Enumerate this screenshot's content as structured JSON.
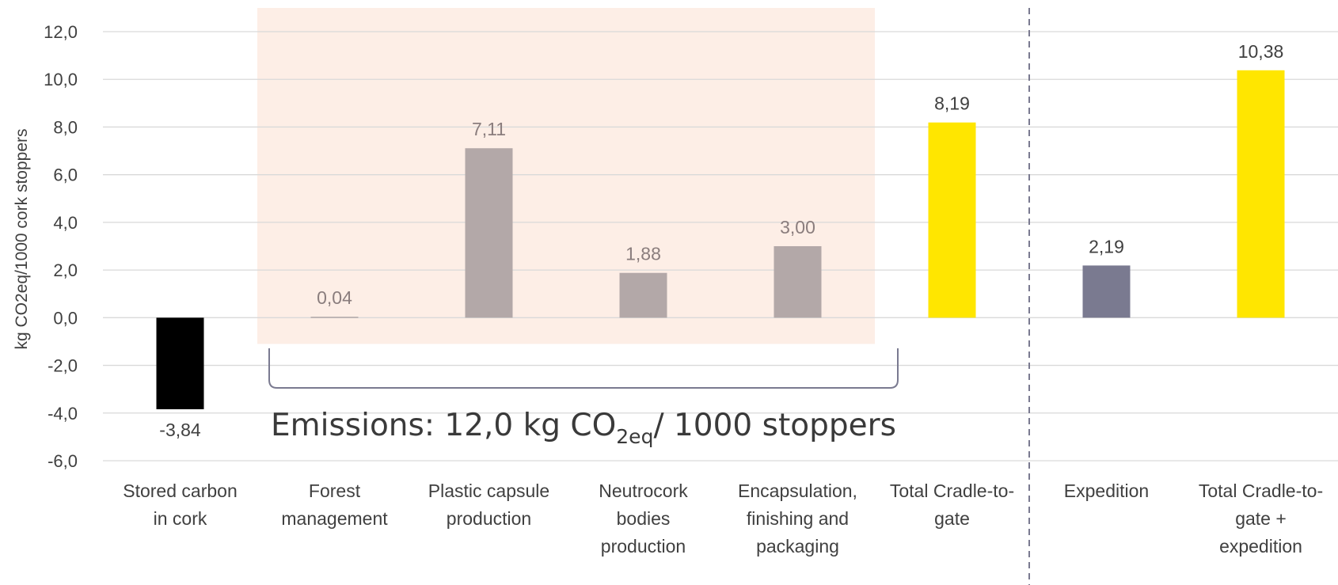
{
  "chart_data": {
    "type": "bar",
    "ylabel": "kg CO2eq/1000 cork stoppers",
    "ylim": [
      -6,
      12
    ],
    "ytick_step": 2,
    "yticks": [
      "12,0",
      "10,0",
      "8,0",
      "6,0",
      "4,0",
      "2,0",
      "0,0",
      "-2,0",
      "-4,0",
      "-6,0"
    ],
    "grid": true,
    "categories": [
      [
        "Stored carbon",
        "in cork"
      ],
      [
        "Forest",
        "management"
      ],
      [
        "Plastic capsule",
        "production"
      ],
      [
        "Neutrocork",
        "bodies",
        "production"
      ],
      [
        "Encapsulation,",
        "finishing and",
        "packaging"
      ],
      [
        "Total Cradle-to-",
        "gate"
      ],
      [
        "Expedition"
      ],
      [
        "Total Cradle-to-",
        "gate +",
        "expedition"
      ]
    ],
    "values": [
      -3.84,
      0.04,
      7.11,
      1.88,
      3.0,
      8.19,
      2.19,
      10.38
    ],
    "value_labels": [
      "-3,84",
      "0,04",
      "7,11",
      "1,88",
      "3,00",
      "8,19",
      "2,19",
      "10,38"
    ],
    "bar_colors": [
      "#000000",
      "#b3a8a8",
      "#b3a8a8",
      "#b3a8a8",
      "#b3a8a8",
      "#ffe600",
      "#7a7a90",
      "#ffe600"
    ],
    "label_colors": [
      "#404040",
      "#8a7d7d",
      "#8a7d7d",
      "#8a7d7d",
      "#8a7d7d",
      "#404040",
      "#404040",
      "#404040"
    ],
    "highlight_region": {
      "from_category": 1,
      "to_category": 4,
      "color": "#fdeee6"
    },
    "separator_after_category": 5,
    "annotation": {
      "text_main": "Emissions: 12,0 kg CO",
      "text_sub": "2eq",
      "text_tail": "/ 1000 stoppers"
    }
  }
}
